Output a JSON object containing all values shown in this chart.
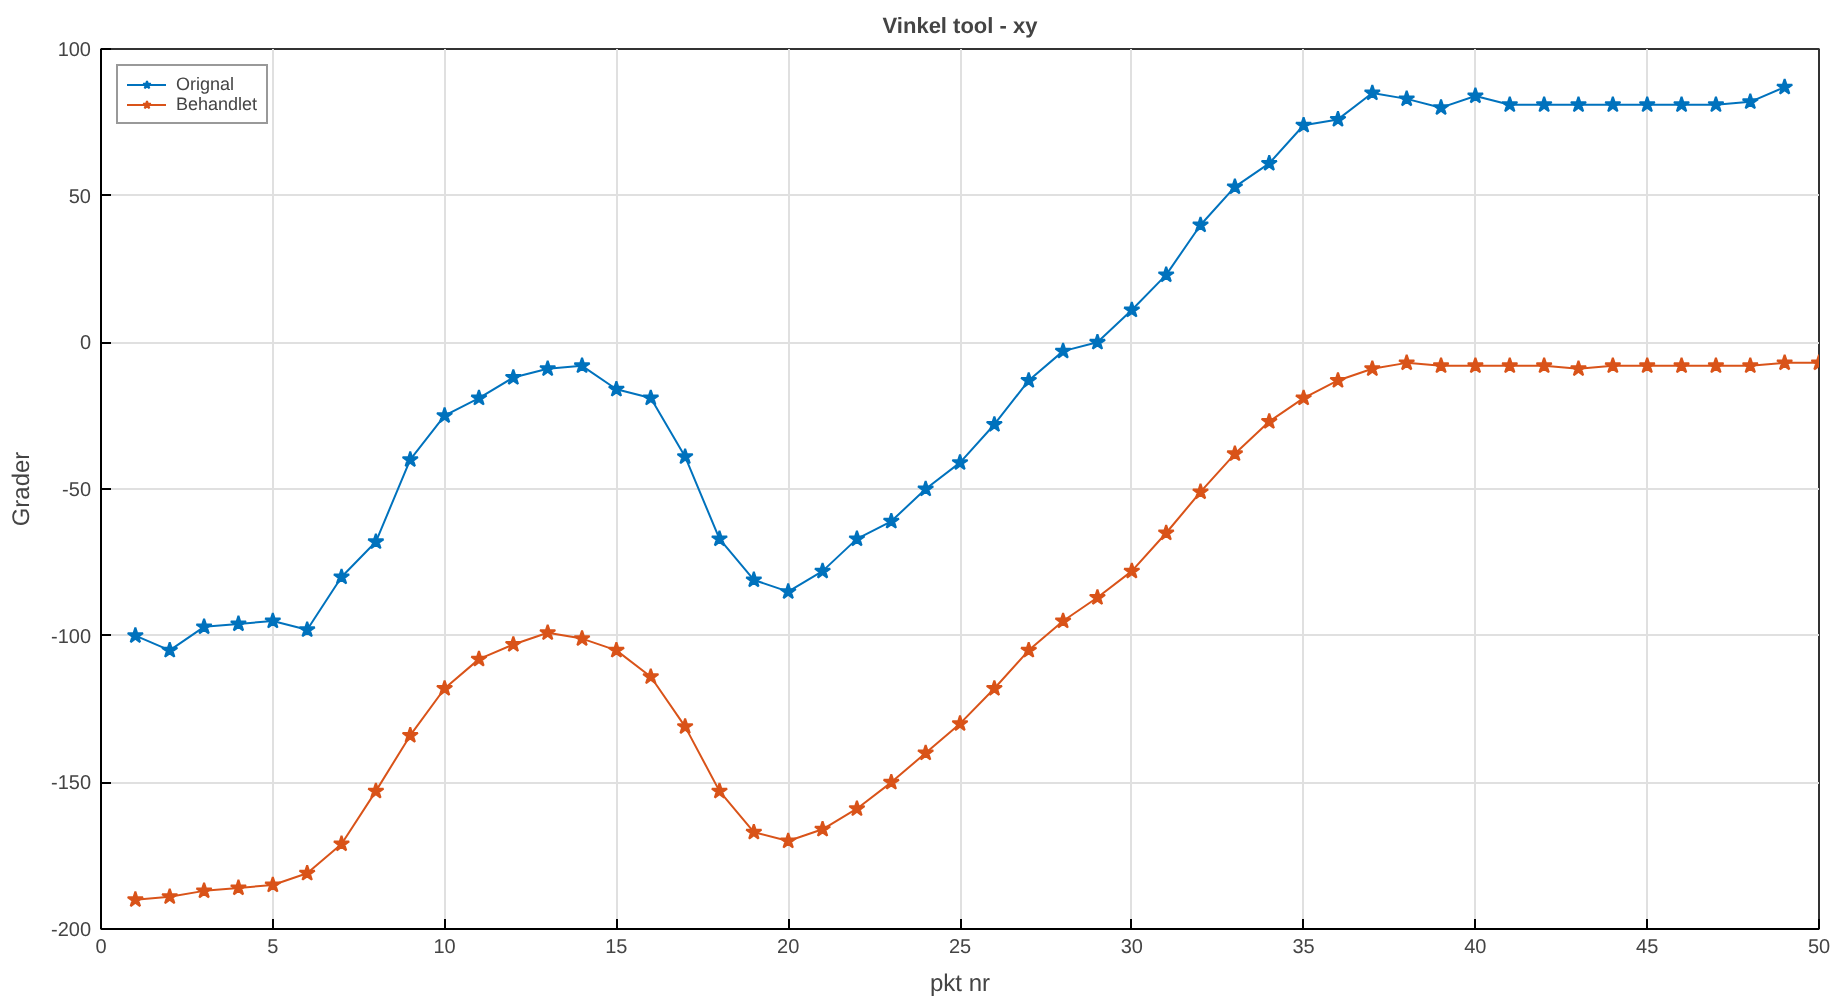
{
  "chart_data": {
    "type": "line",
    "title": "Vinkel tool - xy",
    "xlabel": "pkt nr",
    "ylabel": "Grader",
    "xlim": [
      0,
      50
    ],
    "xticks": [
      0,
      5,
      10,
      15,
      20,
      25,
      30,
      35,
      40,
      45,
      50
    ],
    "ylim": [
      -200,
      100
    ],
    "yticks": [
      -200,
      -150,
      -100,
      -50,
      0,
      50,
      100
    ],
    "grid": true,
    "legend": "top left",
    "marker": "star",
    "line_style": "solid",
    "series": [
      {
        "name": "Orignal",
        "color": "#0072bd",
        "x": [
          1,
          2,
          3,
          4,
          5,
          6,
          7,
          8,
          9,
          10,
          11,
          12,
          13,
          14,
          15,
          16,
          17,
          18,
          19,
          20,
          21,
          22,
          23,
          24,
          25,
          26,
          27,
          28,
          29,
          30,
          31,
          32,
          33,
          34,
          35,
          36,
          37,
          38,
          39,
          40,
          41,
          42,
          43,
          44,
          45,
          46,
          47,
          48,
          49
        ],
        "values": [
          -100,
          -105,
          -97,
          -96,
          -95,
          -98,
          -80,
          -68,
          -40,
          -25,
          -19,
          -12,
          -9,
          -8,
          -16,
          -19,
          -39,
          -67,
          -81,
          -85,
          -78,
          -67,
          -61,
          -50,
          -41,
          -28,
          -13,
          -3,
          0,
          11,
          23,
          40,
          53,
          61,
          74,
          76,
          85,
          83,
          80,
          84,
          81,
          81,
          81,
          81,
          81,
          81,
          81,
          82,
          87
        ]
      },
      {
        "name": "Behandlet",
        "color": "#d95319",
        "x": [
          1,
          2,
          3,
          4,
          5,
          6,
          7,
          8,
          9,
          10,
          11,
          12,
          13,
          14,
          15,
          16,
          17,
          18,
          19,
          20,
          21,
          22,
          23,
          24,
          25,
          26,
          27,
          28,
          29,
          30,
          31,
          32,
          33,
          34,
          35,
          36,
          37,
          38,
          39,
          40,
          41,
          42,
          43,
          44,
          45,
          46,
          47,
          48,
          49,
          50
        ],
        "values": [
          -190,
          -189,
          -187,
          -186,
          -185,
          -181,
          -171,
          -153,
          -134,
          -118,
          -108,
          -103,
          -99,
          -101,
          -105,
          -114,
          -131,
          -153,
          -167,
          -170,
          -166,
          -159,
          -150,
          -140,
          -130,
          -118,
          -105,
          -95,
          -87,
          -78,
          -65,
          -51,
          -38,
          -27,
          -19,
          -13,
          -9,
          -7,
          -8,
          -8,
          -8,
          -8,
          -9,
          -8,
          -8,
          -8,
          -8,
          -8,
          -7,
          -7
        ]
      }
    ]
  }
}
